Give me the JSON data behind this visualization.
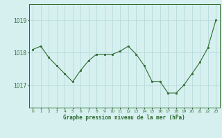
{
  "x": [
    0,
    1,
    2,
    3,
    4,
    5,
    6,
    7,
    8,
    9,
    10,
    11,
    12,
    13,
    14,
    15,
    16,
    17,
    18,
    19,
    20,
    21,
    22,
    23
  ],
  "y": [
    1018.1,
    1018.2,
    1017.85,
    1017.6,
    1017.35,
    1017.1,
    1017.45,
    1017.75,
    1017.95,
    1017.95,
    1017.95,
    1018.05,
    1018.2,
    1017.95,
    1017.6,
    1017.1,
    1017.1,
    1016.75,
    1016.75,
    1017.0,
    1017.35,
    1017.7,
    1018.15,
    1019.0
  ],
  "line_color": "#2d6a2d",
  "marker_color": "#2d6a2d",
  "bg_color": "#d6f0f0",
  "grid_color": "#b8dada",
  "axis_label_color": "#2d6a2d",
  "tick_color": "#2d6a2d",
  "xlabel": "Graphe pression niveau de la mer (hPa)",
  "yticks": [
    1017,
    1018,
    1019
  ],
  "ylim": [
    1016.3,
    1019.5
  ],
  "xlim": [
    -0.5,
    23.5
  ]
}
